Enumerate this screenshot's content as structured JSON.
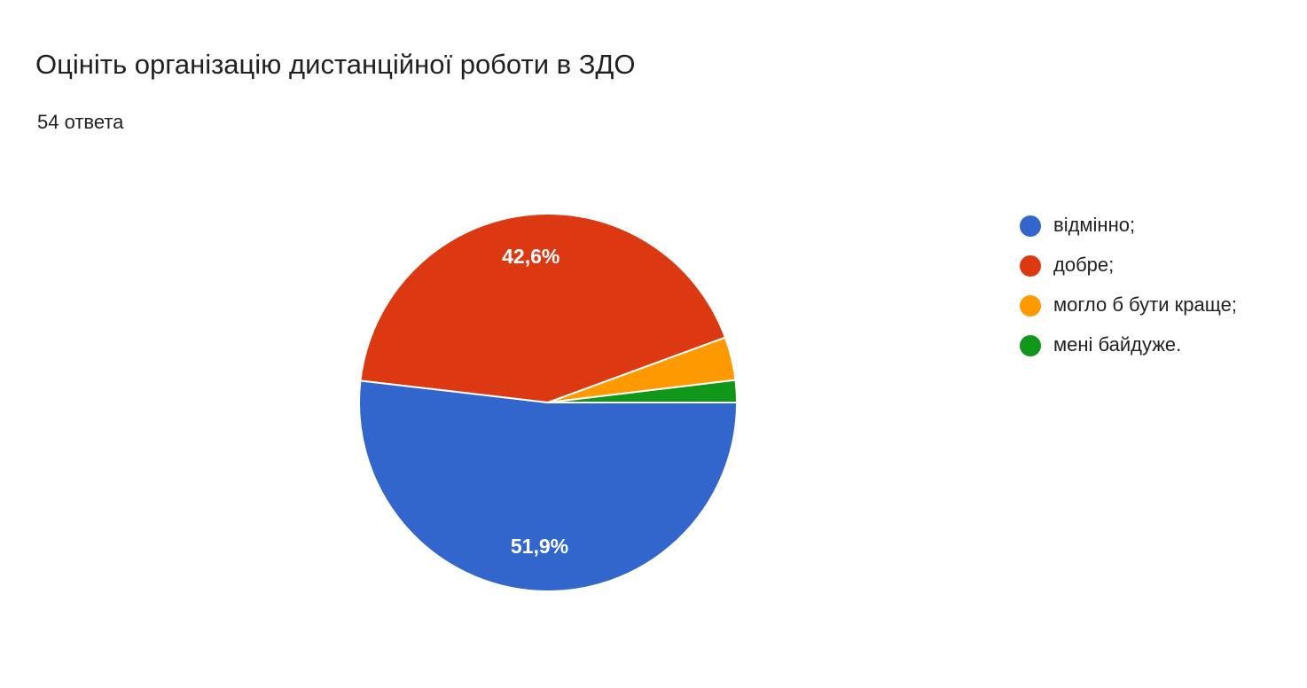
{
  "chart_data": {
    "type": "pie",
    "title": "Оцініть організацію дистанційної роботи в ЗДО",
    "subtitle": "54 ответа",
    "categories": [
      "відмінно;",
      "добре;",
      "могло б бути краще;",
      "мені байдуже."
    ],
    "values": [
      51.9,
      42.6,
      3.7,
      1.9
    ],
    "value_labels": [
      "51,9%",
      "42,6%",
      null,
      null
    ],
    "colors": [
      "#3366cc",
      "#dc3912",
      "#ff9900",
      "#109618"
    ],
    "legend": "right"
  }
}
